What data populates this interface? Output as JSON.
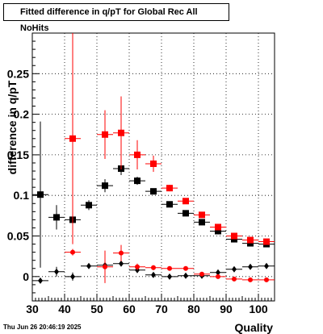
{
  "chart_data": {
    "type": "scatter",
    "title": "Fitted difference in q/pT for Global Rec All NoHits",
    "xlabel": "Quality",
    "ylabel": "difference in q/pT",
    "xlim": [
      30,
      105
    ],
    "ylim": [
      -0.03,
      0.3
    ],
    "x_ticks": [
      30,
      40,
      50,
      60,
      70,
      80,
      90,
      100
    ],
    "y_ticks": [
      0,
      0.05,
      0.1,
      0.15,
      0.2,
      0.25
    ],
    "y_tick_labels": [
      "0",
      "0.05",
      "0.1",
      "0.15",
      "0.2",
      "0.25"
    ],
    "grid": true,
    "legend": "none",
    "series": [
      {
        "marker": "square",
        "color": "#000000",
        "size": 8,
        "points": [
          {
            "x": 32.5,
            "y": 0.101,
            "ex": 2.5,
            "ey": 0.09
          },
          {
            "x": 37.5,
            "y": 0.073,
            "ex": 2.5,
            "ey": 0.015
          },
          {
            "x": 42.5,
            "y": 0.07,
            "ex": 2.5,
            "ey": 0.015
          },
          {
            "x": 47.5,
            "y": 0.088,
            "ex": 2.5,
            "ey": 0.006
          },
          {
            "x": 52.5,
            "y": 0.112,
            "ex": 2.5,
            "ey": 0.008
          },
          {
            "x": 57.5,
            "y": 0.133,
            "ex": 2.5,
            "ey": 0.008
          },
          {
            "x": 62.5,
            "y": 0.118,
            "ex": 2.5,
            "ey": 0.005
          },
          {
            "x": 67.5,
            "y": 0.105,
            "ex": 2.5,
            "ey": 0.003
          },
          {
            "x": 72.5,
            "y": 0.089,
            "ex": 2.5,
            "ey": 0.003
          },
          {
            "x": 77.5,
            "y": 0.078,
            "ex": 2.5,
            "ey": 0.003
          },
          {
            "x": 82.5,
            "y": 0.067,
            "ex": 2.5,
            "ey": 0.002
          },
          {
            "x": 87.5,
            "y": 0.056,
            "ex": 2.5,
            "ey": 0.002
          },
          {
            "x": 92.5,
            "y": 0.046,
            "ex": 2.5,
            "ey": 0.002
          },
          {
            "x": 97.5,
            "y": 0.041,
            "ex": 2.5,
            "ey": 0.002
          },
          {
            "x": 102.5,
            "y": 0.04,
            "ex": 2.5,
            "ey": 0.002
          }
        ]
      },
      {
        "marker": "square",
        "color": "#ff0000",
        "size": 8,
        "points": [
          {
            "x": 42.5,
            "y": 0.17,
            "ex": 2.5,
            "ey": 0.13
          },
          {
            "x": 52.5,
            "y": 0.175,
            "ex": 2.5,
            "ey": 0.03
          },
          {
            "x": 57.5,
            "y": 0.177,
            "ex": 2.5,
            "ey": 0.045
          },
          {
            "x": 62.5,
            "y": 0.15,
            "ex": 2.5,
            "ey": 0.018
          },
          {
            "x": 67.5,
            "y": 0.139,
            "ex": 2.5,
            "ey": 0.01
          },
          {
            "x": 72.5,
            "y": 0.109,
            "ex": 2.5,
            "ey": 0.004
          },
          {
            "x": 77.5,
            "y": 0.093,
            "ex": 2.5,
            "ey": 0.003
          },
          {
            "x": 82.5,
            "y": 0.076,
            "ex": 2.5,
            "ey": 0.003
          },
          {
            "x": 87.5,
            "y": 0.061,
            "ex": 2.5,
            "ey": 0.002
          },
          {
            "x": 92.5,
            "y": 0.05,
            "ex": 2.5,
            "ey": 0.002
          },
          {
            "x": 97.5,
            "y": 0.045,
            "ex": 2.5,
            "ey": 0.002
          },
          {
            "x": 102.5,
            "y": 0.043,
            "ex": 2.5,
            "ey": 0.002
          }
        ]
      },
      {
        "marker": "diamond",
        "color": "#000000",
        "size": 6,
        "points": [
          {
            "x": 32.5,
            "y": -0.005,
            "ex": 2.5,
            "ey": 0.003
          },
          {
            "x": 37.5,
            "y": 0.006,
            "ex": 2.5,
            "ey": 0.006
          },
          {
            "x": 42.5,
            "y": 0.0,
            "ex": 2.5,
            "ey": 0.005
          },
          {
            "x": 47.5,
            "y": 0.013,
            "ex": 2.5,
            "ey": 0.003
          },
          {
            "x": 52.5,
            "y": 0.014,
            "ex": 2.5,
            "ey": 0.003
          },
          {
            "x": 57.5,
            "y": 0.016,
            "ex": 2.5,
            "ey": 0.003
          },
          {
            "x": 62.5,
            "y": 0.008,
            "ex": 2.5,
            "ey": 0.002
          },
          {
            "x": 67.5,
            "y": 0.002,
            "ex": 2.5,
            "ey": 0.002
          },
          {
            "x": 72.5,
            "y": 0.0,
            "ex": 2.5,
            "ey": 0.001
          },
          {
            "x": 77.5,
            "y": 0.001,
            "ex": 2.5,
            "ey": 0.001
          },
          {
            "x": 82.5,
            "y": 0.001,
            "ex": 2.5,
            "ey": 0.001
          },
          {
            "x": 87.5,
            "y": 0.005,
            "ex": 2.5,
            "ey": 0.001
          },
          {
            "x": 92.5,
            "y": 0.009,
            "ex": 2.5,
            "ey": 0.001
          },
          {
            "x": 97.5,
            "y": 0.012,
            "ex": 2.5,
            "ey": 0.001
          },
          {
            "x": 102.5,
            "y": 0.013,
            "ex": 2.5,
            "ey": 0.001
          }
        ]
      },
      {
        "marker": "circle",
        "color": "#ff0000",
        "size": 6,
        "points": [
          {
            "x": 42.5,
            "y": 0.03,
            "ex": 2.5,
            "ey": 0.004
          },
          {
            "x": 52.5,
            "y": 0.012,
            "ex": 2.5,
            "ey": 0.02
          },
          {
            "x": 57.5,
            "y": 0.029,
            "ex": 2.5,
            "ey": 0.01
          },
          {
            "x": 62.5,
            "y": 0.012,
            "ex": 2.5,
            "ey": 0.004
          },
          {
            "x": 67.5,
            "y": 0.011,
            "ex": 2.5,
            "ey": 0.003
          },
          {
            "x": 72.5,
            "y": 0.01,
            "ex": 2.5,
            "ey": 0.002
          },
          {
            "x": 77.5,
            "y": 0.01,
            "ex": 2.5,
            "ey": 0.002
          },
          {
            "x": 82.5,
            "y": 0.003,
            "ex": 2.5,
            "ey": 0.001
          },
          {
            "x": 87.5,
            "y": 0.0,
            "ex": 2.5,
            "ey": 0.001
          },
          {
            "x": 92.5,
            "y": -0.003,
            "ex": 2.5,
            "ey": 0.001
          },
          {
            "x": 97.5,
            "y": -0.004,
            "ex": 2.5,
            "ey": 0.001
          },
          {
            "x": 102.5,
            "y": -0.004,
            "ex": 2.5,
            "ey": 0.001
          }
        ]
      }
    ]
  },
  "footer": {
    "date": "Thu Jun 26 20:46:19 2025"
  }
}
